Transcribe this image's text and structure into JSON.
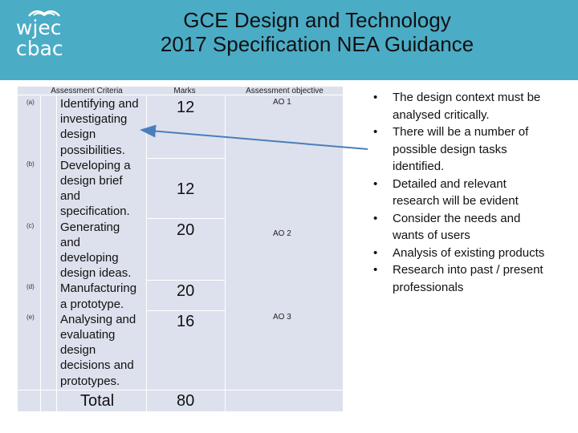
{
  "header": {
    "logo_line1": "wjec",
    "logo_line2": "cbac",
    "title_line1": "GCE Design and Technology",
    "title_line2": "2017 Specification  NEA Guidance"
  },
  "table": {
    "headers": {
      "criteria": "Assessment Criteria",
      "marks": "Marks",
      "objective": "Assessment objective"
    },
    "rows": [
      {
        "letter": "(a)",
        "criteria": [
          "Identifying and",
          "investigating",
          "design",
          "possibilities."
        ],
        "marks": "12"
      },
      {
        "letter": "(b)",
        "criteria": [
          "Developing a",
          "design brief",
          "and",
          "specification."
        ],
        "marks": "12"
      },
      {
        "letter": "(c)",
        "criteria": [
          "Generating",
          "and",
          "developing",
          "design ideas."
        ],
        "marks": "20"
      },
      {
        "letter": "(d)",
        "criteria": [
          "Manufacturing",
          "a prototype."
        ],
        "marks": "20"
      },
      {
        "letter": "(e)",
        "criteria": [
          "Analysing and",
          "evaluating",
          "design",
          "decisions and",
          "prototypes."
        ],
        "marks": "16"
      }
    ],
    "objectives": [
      "AO 1",
      "AO 2",
      "AO 3"
    ],
    "total_label": "Total",
    "total_marks": "80"
  },
  "bullets": {
    "dot": "•",
    "items": [
      [
        "The design context must be",
        "analysed critically."
      ],
      [
        "There will be a number of",
        "possible design tasks",
        "identified."
      ],
      [
        "Detailed and relevant",
        "research will be evident"
      ],
      [
        "Consider the needs and",
        "wants of users"
      ],
      [
        "Analysis of existing products"
      ],
      [
        "Research into past / present",
        "professionals"
      ]
    ]
  },
  "colors": {
    "header_bg": "#4bacc6",
    "table_bg": "#dde1ed",
    "arrow": "#4a7ebb"
  }
}
